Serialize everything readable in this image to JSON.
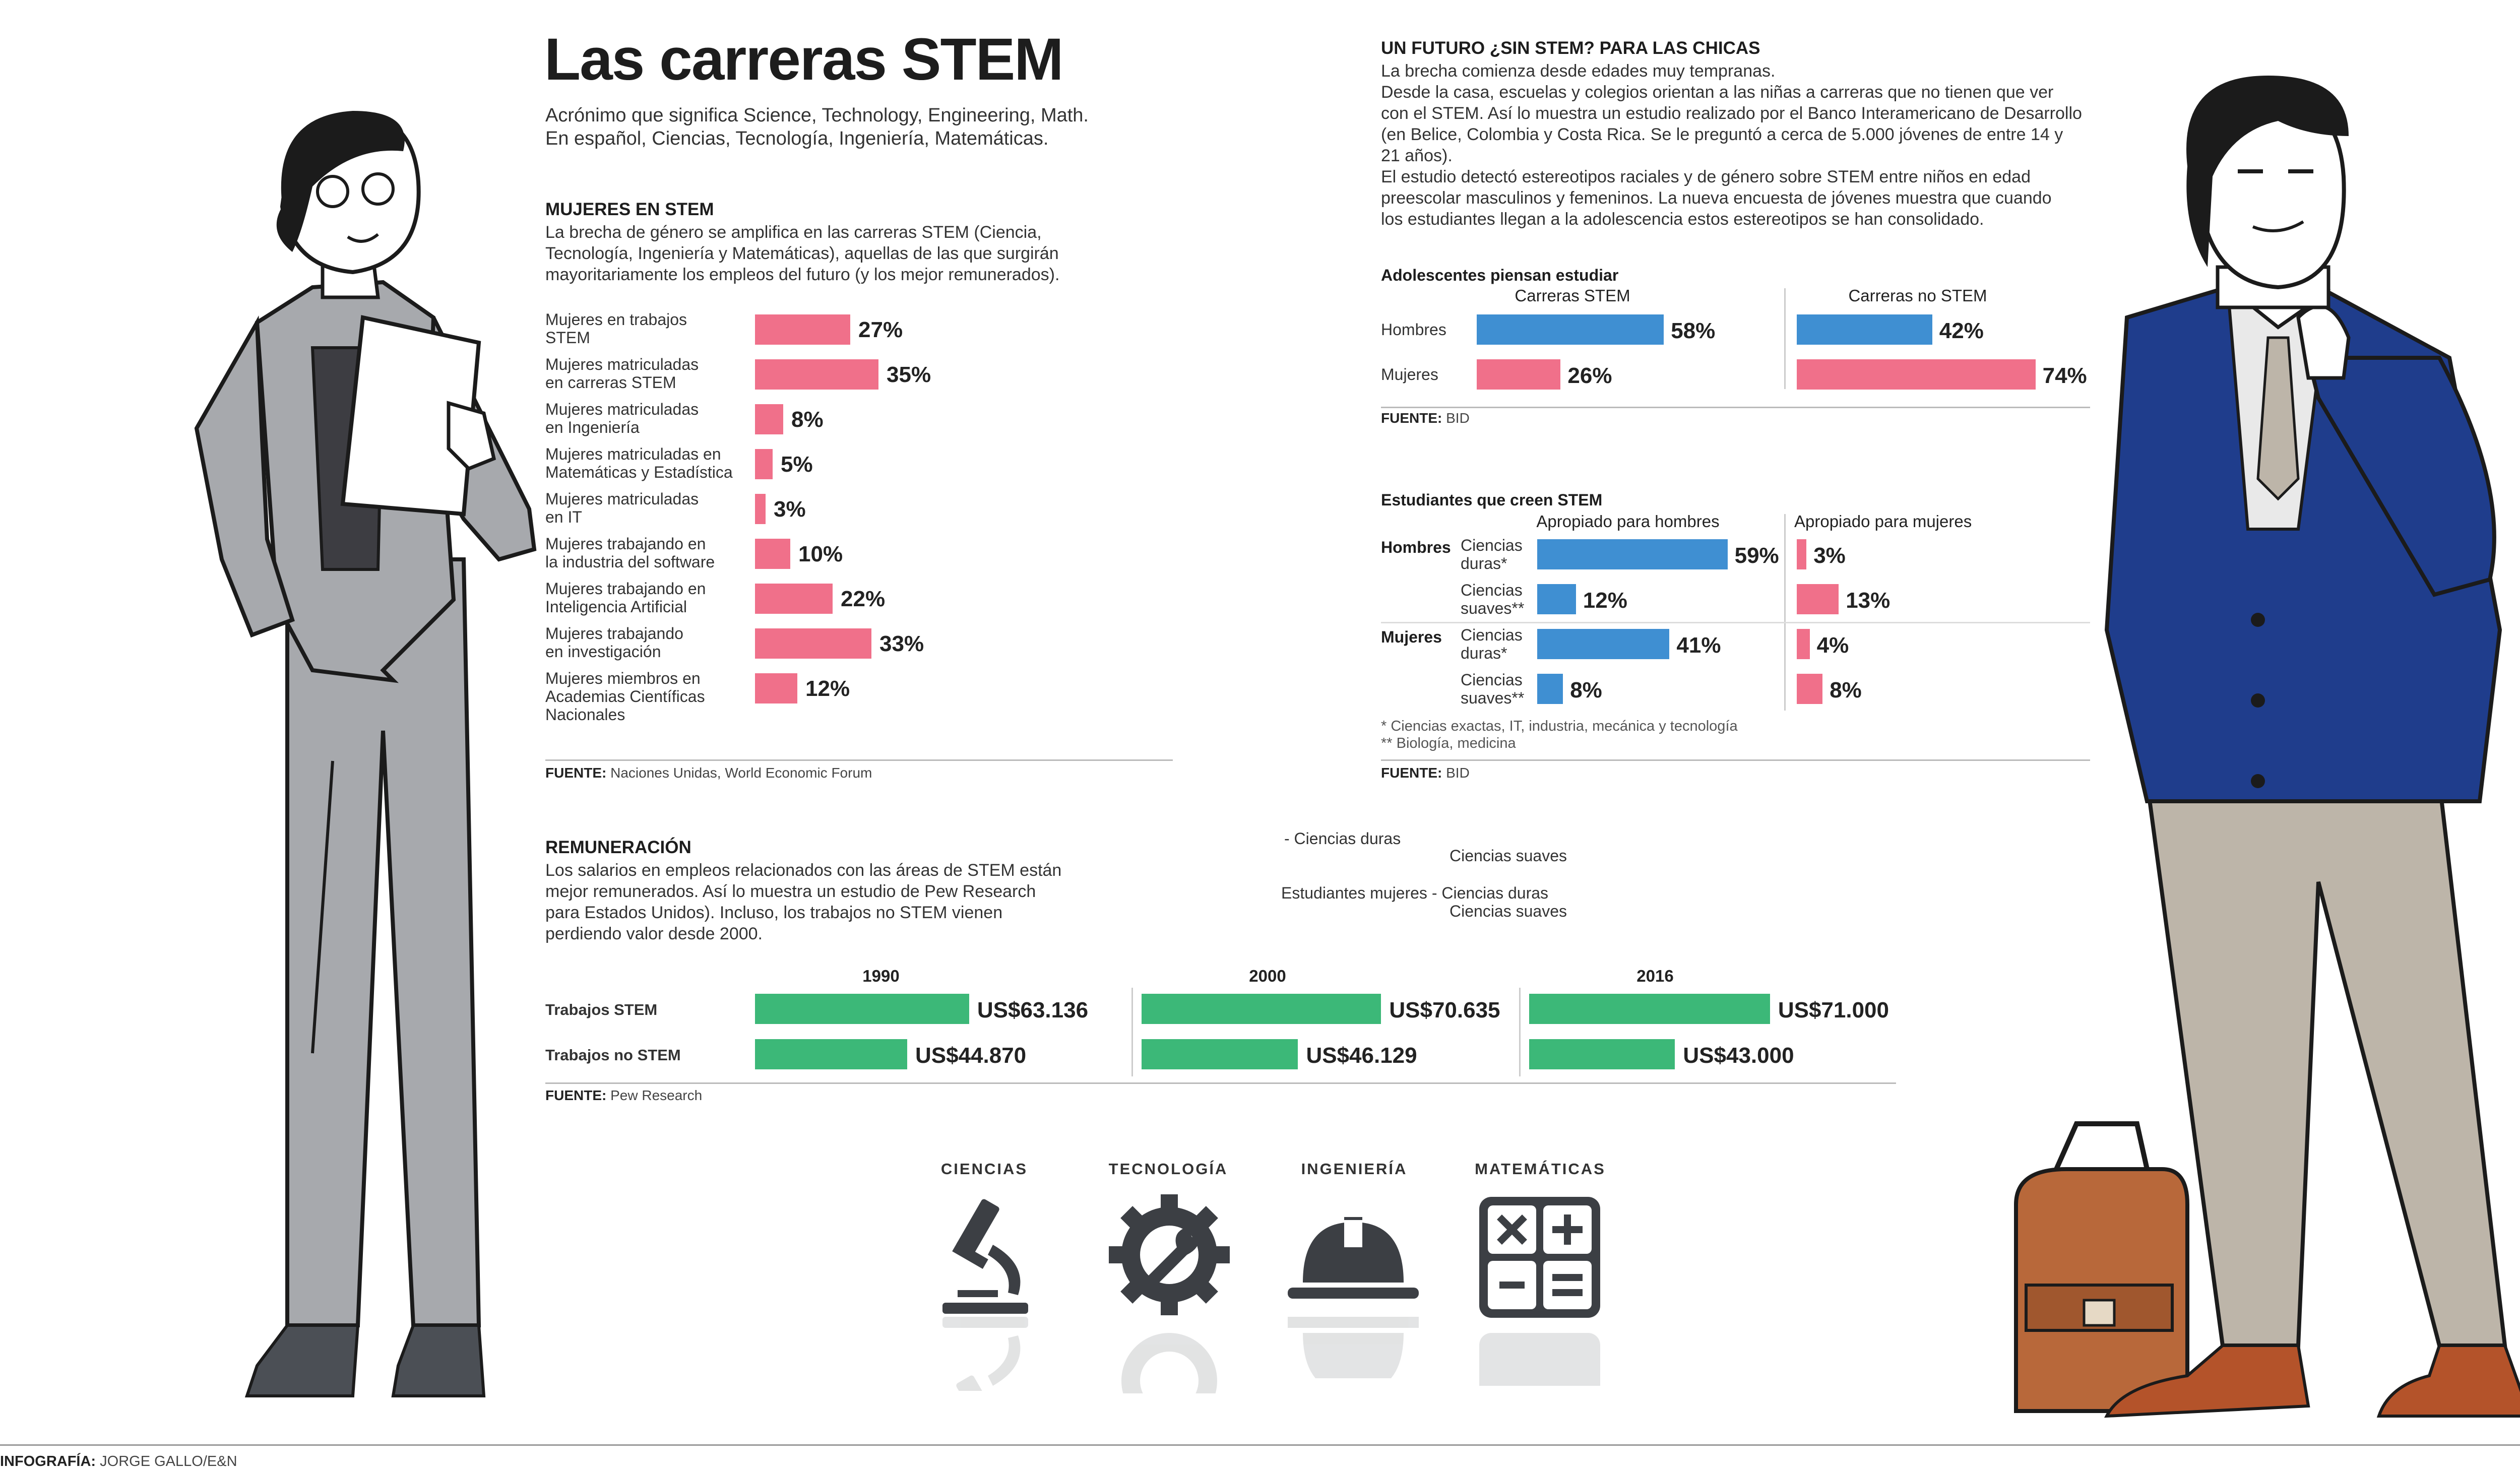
{
  "title": "Las carreras STEM",
  "subtitle": [
    "Acrónimo que significa Science, Technology, Engineering, Math.",
    "En español, Ciencias, Tecnología, Ingeniería, Matemáticas."
  ],
  "women": {
    "heading": "MUJERES EN STEM",
    "text": [
      "La brecha de género se amplifica en las carreras STEM (Ciencia,",
      "Tecnología, Ingeniería y Matemáticas), aquellas de las que surgirán",
      "mayoritariamente los empleos del futuro (y los mejor remunerados)."
    ],
    "source_label": "FUENTE:",
    "source": "Naciones Unidas, World Economic Forum"
  },
  "teens": {
    "heading": "UN FUTURO ¿SIN STEM? PARA LAS CHICAS",
    "text": [
      "La brecha comienza desde edades muy tempranas.",
      "Desde la casa, escuelas y colegios orientan a las niñas a carreras que no tienen que ver",
      "con el STEM. Así lo muestra un estudio realizado por el Banco Interamericano de Desarrollo",
      "(en Belice, Colombia y Costa Rica. Se le preguntó a cerca de 5.000 jóvenes de entre 14 y",
      "21 años).",
      "El estudio detectó estereotipos raciales y de género sobre STEM entre niños en edad",
      "preescolar masculinos y femeninos. La nueva encuesta de jóvenes muestra que cuando",
      "los estudiantes llegan a la adolescencia estos estereotipos se han consolidado."
    ],
    "plan_title": "Adolescentes piensan estudiar",
    "plan_source_label": "FUENTE:",
    "plan_source": "BID",
    "belief_title": "Estudiantes que creen STEM",
    "belief_source_label": "FUENTE:",
    "belief_source": "BID",
    "footnotes": [
      "* Ciencias exactas, IT, industria, mecánica y tecnología",
      "** Biología, medicina"
    ]
  },
  "stray_labels": {
    "a": "- Ciencias duras",
    "b": "Ciencias suaves",
    "c": "Estudiantes mujeres - Ciencias duras",
    "d": "Ciencias suaves"
  },
  "pay": {
    "heading": "REMUNERACIÓN",
    "text": [
      "Los salarios en empleos relacionados con las áreas de STEM están",
      "mejor remunerados. Así lo muestra un estudio de Pew Research",
      "para Estados Unidos). Incluso, los trabajos no STEM vienen",
      "perdiendo valor desde 2000."
    ],
    "source_label": "FUENTE:",
    "source": "Pew Research"
  },
  "icons": [
    {
      "label": "CIENCIAS",
      "icon": "microscope-icon"
    },
    {
      "label": "TECNOLOGÍA",
      "icon": "gear-wrench-icon"
    },
    {
      "label": "INGENIERÍA",
      "icon": "hard-hat-icon"
    },
    {
      "label": "MATEMÁTICAS",
      "icon": "calculator-icon"
    }
  ],
  "credit": {
    "label": "INFOGRAFÍA:",
    "name": "JORGE GALLO/E&N"
  },
  "colors": {
    "pink": "#f0708a",
    "blue": "#3f8fd2",
    "green": "#3cb878"
  },
  "chart_data": [
    {
      "id": "women",
      "type": "bar",
      "orientation": "horizontal",
      "title": "MUJERES EN STEM",
      "categories": [
        [
          "Mujeres en trabajos",
          "STEM"
        ],
        [
          "Mujeres matriculadas",
          "en carreras STEM"
        ],
        [
          "Mujeres matriculadas",
          "en Ingeniería"
        ],
        [
          "Mujeres matriculadas en",
          "Matemáticas y Estadística"
        ],
        [
          "Mujeres matriculadas",
          "en IT"
        ],
        [
          "Mujeres trabajando en",
          "la industria del software"
        ],
        [
          "Mujeres trabajando en",
          "Inteligencia Artificial"
        ],
        [
          "Mujeres trabajando",
          "en investigación"
        ],
        [
          "Mujeres miembros en",
          "Academias Científicas",
          "Nacionales"
        ]
      ],
      "values": [
        27,
        35,
        8,
        5,
        3,
        10,
        22,
        33,
        12
      ],
      "value_labels": [
        "27%",
        "35%",
        "8%",
        "5%",
        "3%",
        "10%",
        "22%",
        "33%",
        "12%"
      ],
      "unit": "%"
    },
    {
      "id": "plan",
      "type": "bar",
      "orientation": "horizontal",
      "title": "Adolescentes piensan estudiar",
      "groups": [
        "Carreras STEM",
        "Carreras no STEM"
      ],
      "rows": [
        "Hombres",
        "Mujeres"
      ],
      "values": {
        "Carreras STEM": [
          58,
          26
        ],
        "Carreras no STEM": [
          42,
          74
        ]
      },
      "value_labels": {
        "Carreras STEM": [
          "58%",
          "26%"
        ],
        "Carreras no STEM": [
          "42%",
          "74%"
        ]
      },
      "unit": "%"
    },
    {
      "id": "belief",
      "type": "bar",
      "orientation": "horizontal",
      "title": "Estudiantes que creen STEM",
      "groups": [
        "Apropiado para hombres",
        "Apropiado para mujeres"
      ],
      "rows": [
        {
          "group": "Hombres",
          "label": [
            "Ciencias",
            "duras*"
          ]
        },
        {
          "group": "",
          "label": [
            "Ciencias",
            "suaves**"
          ]
        },
        {
          "group": "Mujeres",
          "label": [
            "Ciencias",
            "duras*"
          ]
        },
        {
          "group": "",
          "label": [
            "Ciencias",
            "suaves**"
          ]
        }
      ],
      "values": {
        "Apropiado para hombres": [
          59,
          12,
          41,
          8
        ],
        "Apropiado para mujeres": [
          3,
          13,
          4,
          8
        ]
      },
      "value_labels": {
        "Apropiado para hombres": [
          "59%",
          "12%",
          "41%",
          "8%"
        ],
        "Apropiado para mujeres": [
          "3%",
          "13%",
          "4%",
          "8%"
        ]
      },
      "unit": "%"
    },
    {
      "id": "pay",
      "type": "bar",
      "orientation": "horizontal",
      "title": "REMUNERACIÓN",
      "years": [
        "1990",
        "2000",
        "2016"
      ],
      "rows": [
        "Trabajos STEM",
        "Trabajos no STEM"
      ],
      "values": {
        "1990": [
          63136,
          44870
        ],
        "2000": [
          70635,
          46129
        ],
        "2016": [
          71000,
          43000
        ]
      },
      "value_labels": {
        "1990": [
          "US$63.136",
          "US$44.870"
        ],
        "2000": [
          "US$70.635",
          "US$46.129"
        ],
        "2016": [
          "US$71.000",
          "US$43.000"
        ]
      },
      "unit": "US$"
    }
  ]
}
